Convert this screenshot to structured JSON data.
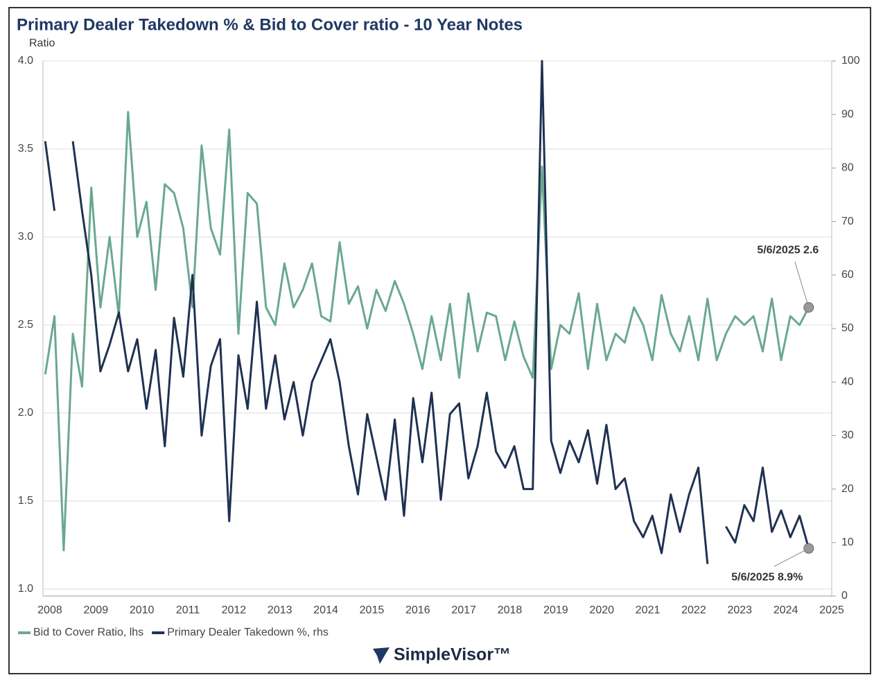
{
  "chart_data": {
    "type": "line",
    "title": "Primary Dealer Takedown % & Bid to Cover ratio - 10 Year Notes",
    "y_label": "Ratio",
    "logo": "SimpleVisor™",
    "x": [
      2007.9,
      2008.1,
      2008.3,
      2008.5,
      2008.7,
      2008.9,
      2009.1,
      2009.3,
      2009.5,
      2009.7,
      2009.9,
      2010.1,
      2010.3,
      2010.5,
      2010.7,
      2010.9,
      2011.1,
      2011.3,
      2011.5,
      2011.7,
      2011.9,
      2012.1,
      2012.3,
      2012.5,
      2012.7,
      2012.9,
      2013.1,
      2013.3,
      2013.5,
      2013.7,
      2013.9,
      2014.1,
      2014.3,
      2014.5,
      2014.7,
      2014.9,
      2015.1,
      2015.3,
      2015.5,
      2015.7,
      2015.9,
      2016.1,
      2016.3,
      2016.5,
      2016.7,
      2016.9,
      2017.1,
      2017.3,
      2017.5,
      2017.7,
      2017.9,
      2018.1,
      2018.3,
      2018.5,
      2018.7,
      2018.9,
      2019.1,
      2019.3,
      2019.5,
      2019.7,
      2019.9,
      2020.1,
      2020.3,
      2020.5,
      2020.7,
      2020.9,
      2021.1,
      2021.3,
      2021.5,
      2021.7,
      2021.9,
      2022.1,
      2022.3,
      2022.5,
      2022.7,
      2022.9,
      2023.1,
      2023.3,
      2023.5,
      2023.7,
      2023.9,
      2024.1,
      2024.3,
      2024.5
    ],
    "series": [
      {
        "name": "Bid to Cover Ratio, lhs",
        "color": "#6aa88f",
        "axis": "y",
        "values": [
          2.22,
          2.55,
          1.22,
          2.45,
          2.15,
          3.28,
          2.6,
          3.0,
          2.55,
          3.71,
          3.0,
          3.2,
          2.7,
          3.3,
          3.25,
          3.05,
          2.6,
          3.52,
          3.05,
          2.9,
          3.61,
          2.45,
          3.25,
          3.19,
          2.6,
          2.5,
          2.85,
          2.6,
          2.7,
          2.85,
          2.55,
          2.52,
          2.97,
          2.62,
          2.72,
          2.48,
          2.7,
          2.58,
          2.75,
          2.62,
          2.45,
          2.25,
          2.55,
          2.3,
          2.62,
          2.2,
          2.68,
          2.35,
          2.57,
          2.55,
          2.3,
          2.52,
          2.32,
          2.2,
          3.4,
          2.25,
          2.5,
          2.45,
          2.68,
          2.25,
          2.62,
          2.3,
          2.45,
          2.4,
          2.6,
          2.5,
          2.3,
          2.67,
          2.45,
          2.35,
          2.55,
          2.3,
          2.65,
          2.3,
          2.45,
          2.55,
          2.5,
          2.55,
          2.35,
          2.65,
          2.3,
          2.55,
          2.5,
          2.6
        ]
      },
      {
        "name": "Primary Dealer Takedown %, rhs",
        "color": "#1f3152",
        "axis": "y2",
        "values": [
          85,
          72,
          null,
          85,
          72,
          60,
          42,
          47,
          53,
          42,
          48,
          35,
          46,
          28,
          52,
          41,
          60,
          30,
          43,
          48,
          14,
          45,
          35,
          55,
          35,
          45,
          33,
          40,
          30,
          40,
          44,
          48,
          40,
          28,
          19,
          34,
          26,
          18,
          33,
          15,
          37,
          25,
          38,
          18,
          34,
          36,
          22,
          28,
          38,
          27,
          24,
          28,
          20,
          20,
          100,
          29,
          23,
          29,
          25,
          31,
          21,
          32,
          20,
          22,
          14,
          11,
          15,
          8,
          19,
          12,
          19,
          24,
          6,
          null,
          13,
          10,
          17,
          14,
          24,
          12,
          16,
          11,
          15,
          8.9
        ]
      }
    ],
    "annotations": [
      {
        "text": "5/6/2025 2.6",
        "series": 0
      },
      {
        "text": "5/6/2025 8.9%",
        "series": 1
      }
    ],
    "xlim": [
      2007.85,
      2025
    ],
    "xticks": [
      2008,
      2009,
      2010,
      2011,
      2012,
      2013,
      2014,
      2015,
      2016,
      2017,
      2018,
      2019,
      2020,
      2021,
      2022,
      2023,
      2024,
      2025
    ],
    "ylim": [
      0.96,
      4.0
    ],
    "yticks": [
      {
        "value": 1,
        "label": "1.0"
      },
      1.5,
      {
        "value": 2,
        "label": "2.0"
      },
      2.5,
      {
        "value": 3,
        "label": "3.0"
      },
      3.5,
      {
        "value": 4,
        "label": "4.0"
      }
    ],
    "y2lim": [
      0,
      100
    ],
    "y2ticks": [
      0,
      10,
      20,
      30,
      40,
      50,
      60,
      70,
      80,
      90,
      100
    ],
    "grid": true,
    "legend": "bottom-left"
  }
}
